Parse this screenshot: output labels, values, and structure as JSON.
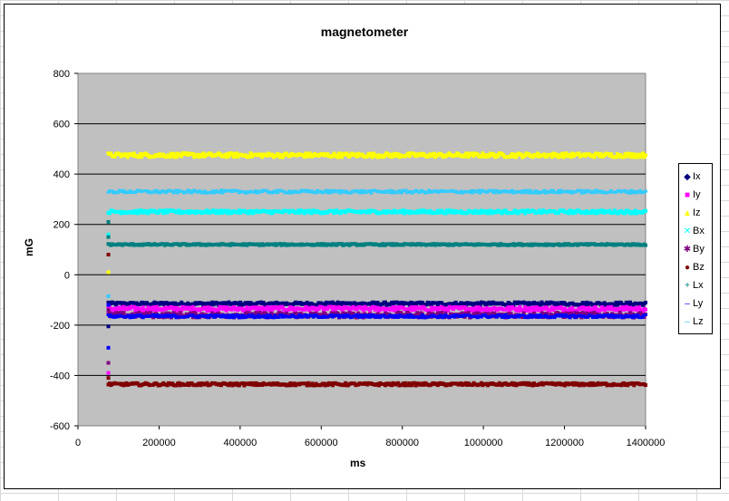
{
  "chart_data": {
    "type": "scatter",
    "title": "magnetometer",
    "xlabel": "ms",
    "ylabel": "mG",
    "xlim": [
      0,
      1400000
    ],
    "ylim": [
      -600,
      800
    ],
    "xticks": [
      "0",
      "200000",
      "400000",
      "600000",
      "800000",
      "1000000",
      "1200000",
      "1400000"
    ],
    "yticks": [
      "800",
      "600",
      "400",
      "200",
      "0",
      "-200",
      "-400",
      "-600"
    ],
    "grid": "horizontal",
    "plot_background": "#c0c0c0",
    "legend_position": "right",
    "x_start": 75000,
    "x_end": 1400000,
    "series": [
      {
        "name": "Ix",
        "marker": "diamond",
        "color": "#000080",
        "steady_value": -115,
        "noise": 6,
        "initial_values": [
          -110,
          -205
        ]
      },
      {
        "name": "Iy",
        "marker": "square",
        "color": "#ff00ff",
        "steady_value": -135,
        "noise": 8,
        "initial_values": [
          -390,
          -150
        ]
      },
      {
        "name": "Iz",
        "marker": "triangle",
        "color": "#ffff00",
        "steady_value": 475,
        "noise": 8,
        "initial_values": [
          10
        ]
      },
      {
        "name": "Bx",
        "marker": "x",
        "color": "#00ffff",
        "steady_value": 250,
        "noise": 6,
        "initial_values": [
          160
        ]
      },
      {
        "name": "By",
        "marker": "star",
        "color": "#800080",
        "steady_value": -160,
        "noise": 10,
        "initial_values": [
          -350,
          -140
        ]
      },
      {
        "name": "Bz",
        "marker": "circle",
        "color": "#800000",
        "steady_value": -435,
        "noise": 5,
        "initial_values": [
          80,
          -410
        ]
      },
      {
        "name": "Lx",
        "marker": "plus",
        "color": "#008080",
        "steady_value": 120,
        "noise": 3,
        "initial_values": [
          210,
          150
        ]
      },
      {
        "name": "Ly",
        "marker": "dash",
        "color": "#0000ff",
        "steady_value": -165,
        "noise": 6,
        "initial_values": [
          -290,
          -120
        ]
      },
      {
        "name": "Lz",
        "marker": "dash",
        "color": "#33ccff",
        "steady_value": 330,
        "noise": 6,
        "initial_values": [
          -85
        ]
      }
    ]
  }
}
